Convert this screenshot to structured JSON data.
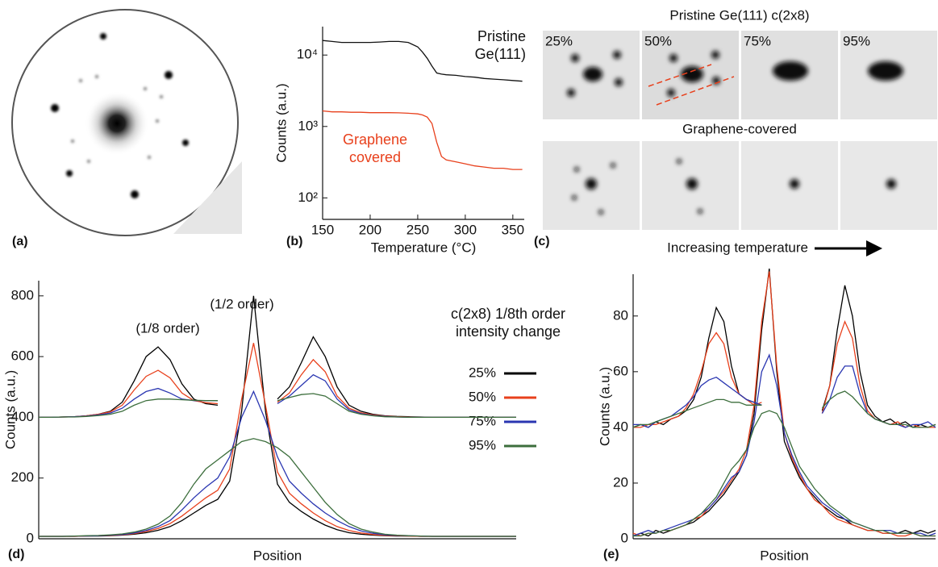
{
  "panel_labels": [
    "(a)",
    "(b)",
    "(c)",
    "(d)",
    "(e)"
  ],
  "image_panel": {
    "top_title": "Pristine Ge(111) c(2x8)",
    "bottom_title": "Graphene-covered",
    "columns": [
      "25%",
      "50%",
      "75%",
      "95%"
    ],
    "caption": "Increasing temperature"
  },
  "chart_data": [
    {
      "type": "line",
      "xlabel": "Temperature (°C)",
      "ylabel": "Counts (a.u.)",
      "log_y": true,
      "x": [
        150,
        160,
        170,
        180,
        190,
        200,
        210,
        220,
        230,
        240,
        250,
        255,
        260,
        265,
        270,
        275,
        280,
        290,
        300,
        310,
        320,
        330,
        340,
        350,
        360
      ],
      "xlim": [
        150,
        362
      ],
      "xticks": [
        150,
        200,
        250,
        300,
        350
      ],
      "ylim": [
        50,
        25000
      ],
      "yticks": [
        {
          "value": 100,
          "label": "10²"
        },
        {
          "value": 1000,
          "label": "10³"
        },
        {
          "value": 10000,
          "label": "10⁴"
        }
      ],
      "series": [
        {
          "name": "Pristine Ge(111)",
          "color": "#111111",
          "values": [
            16000,
            15500,
            15000,
            15000,
            15000,
            15000,
            15200,
            15500,
            15500,
            15000,
            13000,
            11000,
            9000,
            7000,
            5600,
            5400,
            5300,
            5200,
            5000,
            4900,
            4700,
            4600,
            4500,
            4400,
            4300
          ]
        },
        {
          "name": "Graphene covered",
          "color": "#e8401c",
          "values": [
            1650,
            1600,
            1600,
            1580,
            1580,
            1560,
            1560,
            1560,
            1550,
            1530,
            1500,
            1450,
            1350,
            1100,
            600,
            380,
            340,
            320,
            300,
            280,
            270,
            260,
            260,
            250,
            250
          ]
        }
      ]
    },
    {
      "type": "line",
      "xlabel": "Position",
      "ylabel": "Counts (a.u.)",
      "categories": [
        null,
        null,
        null,
        null,
        null,
        null,
        null,
        null,
        null,
        null,
        null,
        null,
        null,
        null,
        null,
        null,
        null,
        null,
        null,
        null,
        null,
        null,
        null,
        null,
        null,
        null,
        null,
        null,
        null,
        null,
        null,
        null,
        null,
        null,
        null,
        null,
        null,
        null,
        null,
        null,
        null
      ],
      "ylim": [
        0,
        850
      ],
      "yticks": [
        0,
        200,
        400,
        600,
        800
      ],
      "annotations": [
        "(1/8 order)",
        "(1/2 order)"
      ],
      "legend_title": "c(2x8) 1/8th order intensity change",
      "series": [
        {
          "name": "25%",
          "color": "#000000",
          "values": [
            8,
            8,
            8,
            8,
            9,
            9,
            10,
            12,
            15,
            20,
            28,
            40,
            60,
            85,
            110,
            130,
            190,
            420,
            800,
            420,
            180,
            120,
            90,
            65,
            45,
            30,
            20,
            15,
            12,
            10,
            9,
            9,
            8,
            8,
            8,
            8,
            8,
            8,
            8,
            8,
            8
          ],
          "side_values": [
            400,
            400,
            401,
            402,
            405,
            410,
            420,
            450,
            520,
            600,
            632,
            590,
            510,
            460,
            445,
            440,
            null,
            null,
            null,
            null,
            460,
            500,
            580,
            665,
            600,
            500,
            440,
            420,
            410,
            405,
            403,
            402,
            401,
            400,
            400,
            400,
            400,
            400,
            400,
            400,
            400
          ]
        },
        {
          "name": "50%",
          "color": "#e8401c",
          "values": [
            8,
            8,
            8,
            8,
            9,
            10,
            11,
            13,
            17,
            24,
            34,
            50,
            75,
            105,
            135,
            160,
            230,
            460,
            645,
            440,
            220,
            150,
            115,
            85,
            60,
            40,
            27,
            19,
            14,
            11,
            10,
            9,
            8,
            8,
            8,
            8,
            8,
            8,
            8,
            8,
            8
          ],
          "side_values": [
            400,
            400,
            401,
            402,
            405,
            410,
            418,
            440,
            490,
            535,
            555,
            530,
            480,
            455,
            448,
            445,
            null,
            null,
            null,
            null,
            450,
            480,
            540,
            590,
            550,
            470,
            430,
            415,
            408,
            404,
            402,
            401,
            400,
            400,
            400,
            400,
            400,
            400,
            400,
            400,
            400
          ]
        },
        {
          "name": "75%",
          "color": "#2a36b1",
          "values": [
            8,
            8,
            8,
            9,
            9,
            10,
            12,
            14,
            19,
            27,
            40,
            60,
            95,
            135,
            170,
            200,
            270,
            400,
            485,
            390,
            270,
            190,
            150,
            115,
            85,
            60,
            40,
            26,
            18,
            13,
            11,
            10,
            9,
            8,
            8,
            8,
            8,
            8,
            8,
            8,
            8
          ],
          "side_values": [
            400,
            400,
            401,
            402,
            404,
            408,
            414,
            430,
            460,
            485,
            495,
            480,
            460,
            455,
            455,
            455,
            null,
            null,
            null,
            null,
            445,
            470,
            505,
            540,
            520,
            460,
            425,
            412,
            406,
            403,
            401,
            400,
            400,
            400,
            400,
            400,
            400,
            400,
            400,
            400,
            400
          ]
        },
        {
          "name": "95%",
          "color": "#3c6e3c",
          "values": [
            8,
            8,
            8,
            9,
            10,
            11,
            13,
            16,
            22,
            32,
            48,
            75,
            120,
            180,
            230,
            260,
            290,
            320,
            330,
            320,
            300,
            270,
            220,
            170,
            120,
            80,
            50,
            32,
            22,
            15,
            12,
            10,
            9,
            8,
            8,
            8,
            8,
            8,
            8,
            8,
            8
          ],
          "side_values": [
            400,
            400,
            401,
            401,
            403,
            406,
            410,
            420,
            440,
            455,
            460,
            460,
            458,
            456,
            455,
            455,
            null,
            null,
            null,
            null,
            455,
            465,
            475,
            478,
            470,
            445,
            420,
            410,
            405,
            402,
            401,
            400,
            400,
            400,
            400,
            400,
            400,
            400,
            400,
            400,
            400
          ]
        }
      ]
    },
    {
      "type": "line",
      "xlabel": "Position",
      "ylabel": "Counts (a.u.)",
      "categories": [
        null,
        null,
        null,
        null,
        null,
        null,
        null,
        null,
        null,
        null,
        null,
        null,
        null,
        null,
        null,
        null,
        null,
        null,
        null,
        null,
        null,
        null,
        null,
        null,
        null,
        null,
        null,
        null,
        null,
        null,
        null,
        null,
        null,
        null,
        null,
        null,
        null,
        null,
        null,
        null,
        null
      ],
      "ylim": [
        0,
        95
      ],
      "yticks": [
        0,
        20,
        40,
        60,
        80
      ],
      "series": [
        {
          "color": "#000000",
          "values": [
            1,
            2,
            1,
            3,
            2,
            3,
            4,
            5,
            6,
            8,
            10,
            13,
            16,
            20,
            24,
            30,
            45,
            75,
            97,
            60,
            35,
            28,
            22,
            18,
            15,
            12,
            10,
            8,
            7,
            5,
            4,
            3,
            3,
            2,
            2,
            2,
            3,
            2,
            3,
            2,
            3
          ],
          "side_values": [
            40,
            41,
            40,
            42,
            41,
            43,
            44,
            46,
            50,
            58,
            72,
            83,
            78,
            62,
            52,
            50,
            49,
            48,
            null,
            null,
            null,
            null,
            null,
            null,
            null,
            46,
            55,
            75,
            91,
            80,
            60,
            48,
            44,
            42,
            43,
            41,
            42,
            40,
            41,
            40,
            41
          ]
        },
        {
          "color": "#e8401c",
          "values": [
            2,
            1,
            2,
            2,
            3,
            3,
            4,
            5,
            7,
            8,
            11,
            14,
            17,
            21,
            25,
            32,
            48,
            78,
            96,
            62,
            38,
            29,
            23,
            18,
            14,
            12,
            9,
            7,
            6,
            5,
            4,
            3,
            3,
            2,
            2,
            1,
            1,
            2,
            1,
            1,
            1
          ],
          "side_values": [
            40,
            40,
            41,
            41,
            42,
            43,
            44,
            47,
            52,
            60,
            70,
            74,
            70,
            58,
            52,
            50,
            48,
            49,
            null,
            null,
            null,
            null,
            null,
            null,
            null,
            45,
            55,
            70,
            78,
            72,
            55,
            46,
            43,
            42,
            41,
            42,
            40,
            41,
            40,
            40,
            40
          ]
        },
        {
          "color": "#2a36b1",
          "values": [
            1,
            2,
            3,
            2,
            3,
            4,
            5,
            6,
            7,
            9,
            11,
            14,
            18,
            22,
            24,
            30,
            42,
            60,
            66,
            55,
            38,
            30,
            24,
            19,
            16,
            13,
            11,
            9,
            7,
            6,
            5,
            4,
            3,
            3,
            3,
            2,
            2,
            2,
            2,
            1,
            2
          ],
          "side_values": [
            41,
            41,
            40,
            42,
            43,
            44,
            46,
            48,
            51,
            55,
            57,
            58,
            56,
            54,
            52,
            50,
            49,
            48,
            null,
            null,
            null,
            null,
            null,
            null,
            null,
            45,
            50,
            58,
            62,
            62,
            52,
            45,
            43,
            42,
            41,
            41,
            40,
            41,
            41,
            42,
            40
          ]
        },
        {
          "color": "#3c6e3c",
          "values": [
            1,
            1,
            2,
            2,
            3,
            3,
            4,
            5,
            7,
            9,
            12,
            15,
            20,
            25,
            28,
            32,
            40,
            45,
            46,
            45,
            40,
            33,
            26,
            22,
            18,
            15,
            12,
            10,
            8,
            6,
            5,
            4,
            3,
            3,
            2,
            2,
            2,
            2,
            1,
            1,
            1
          ],
          "side_values": [
            40,
            41,
            41,
            42,
            43,
            44,
            45,
            46,
            47,
            48,
            49,
            50,
            50,
            49,
            49,
            48,
            48,
            48,
            null,
            null,
            null,
            null,
            null,
            null,
            null,
            47,
            50,
            52,
            53,
            51,
            48,
            45,
            43,
            42,
            41,
            41,
            41,
            40,
            40,
            40,
            41
          ]
        }
      ]
    }
  ]
}
